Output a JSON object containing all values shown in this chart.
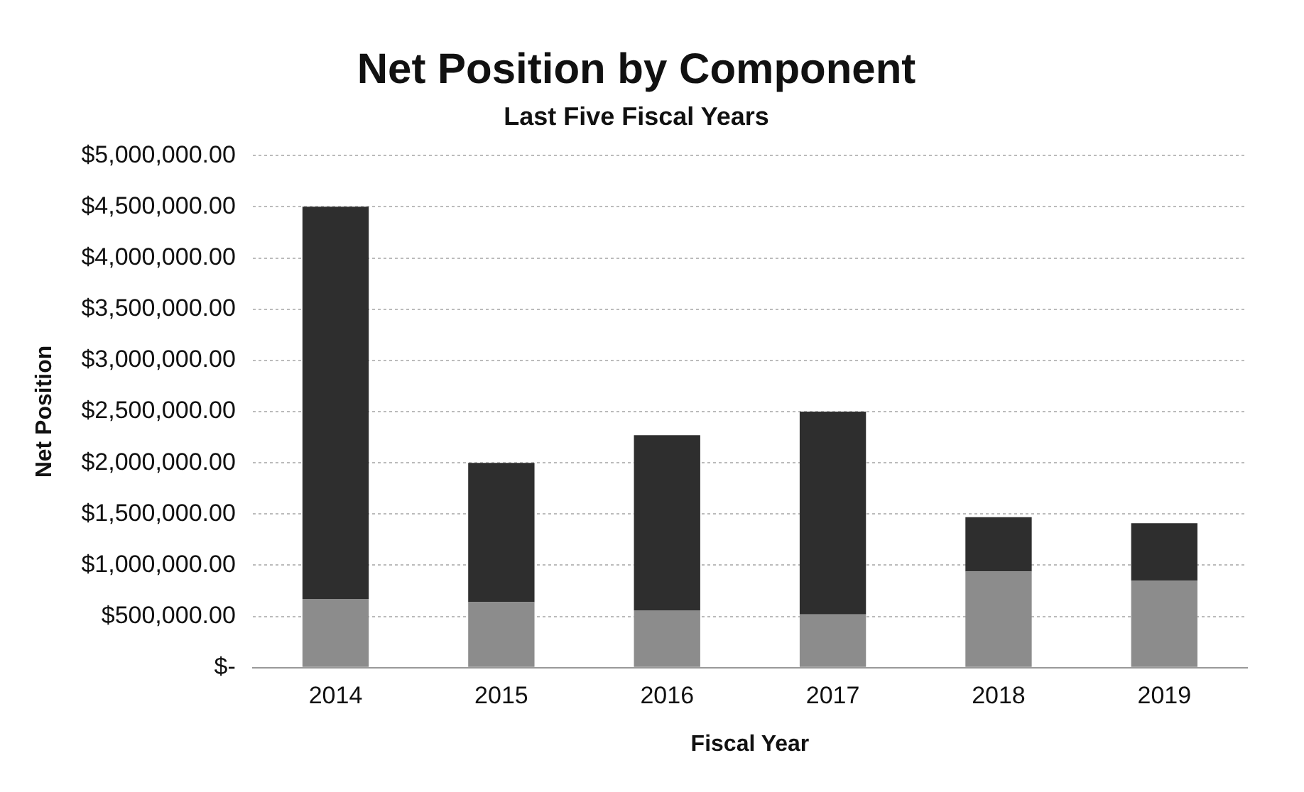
{
  "chart_data": {
    "type": "bar",
    "title": "Net Position by Component",
    "subtitle": "Last Five Fiscal Years",
    "xlabel": "Fiscal Year",
    "ylabel": "Net Position",
    "categories": [
      "2014",
      "2015",
      "2016",
      "2017",
      "2018",
      "2019"
    ],
    "stacked": true,
    "series": [
      {
        "color": "#8c8c8c",
        "values": [
          670000,
          640000,
          560000,
          520000,
          940000,
          850000
        ]
      },
      {
        "color": "#2e2e2e",
        "values": [
          3830000,
          1360000,
          1710000,
          1980000,
          530000,
          560000
        ]
      }
    ],
    "ylim": [
      0,
      5000000
    ],
    "yticks": [
      {
        "value": 0,
        "label": "$-"
      },
      {
        "value": 500000,
        "label": "$500,000.00"
      },
      {
        "value": 1000000,
        "label": "$1,000,000.00"
      },
      {
        "value": 1500000,
        "label": "$1,500,000.00"
      },
      {
        "value": 2000000,
        "label": "$2,000,000.00"
      },
      {
        "value": 2500000,
        "label": "$2,500,000.00"
      },
      {
        "value": 3000000,
        "label": "$3,000,000.00"
      },
      {
        "value": 3500000,
        "label": "$3,500,000.00"
      },
      {
        "value": 4000000,
        "label": "$4,000,000.00"
      },
      {
        "value": 4500000,
        "label": "$4,500,000.00"
      },
      {
        "value": 5000000,
        "label": "$5,000,000.00"
      }
    ],
    "grid": "y",
    "legend": false
  }
}
